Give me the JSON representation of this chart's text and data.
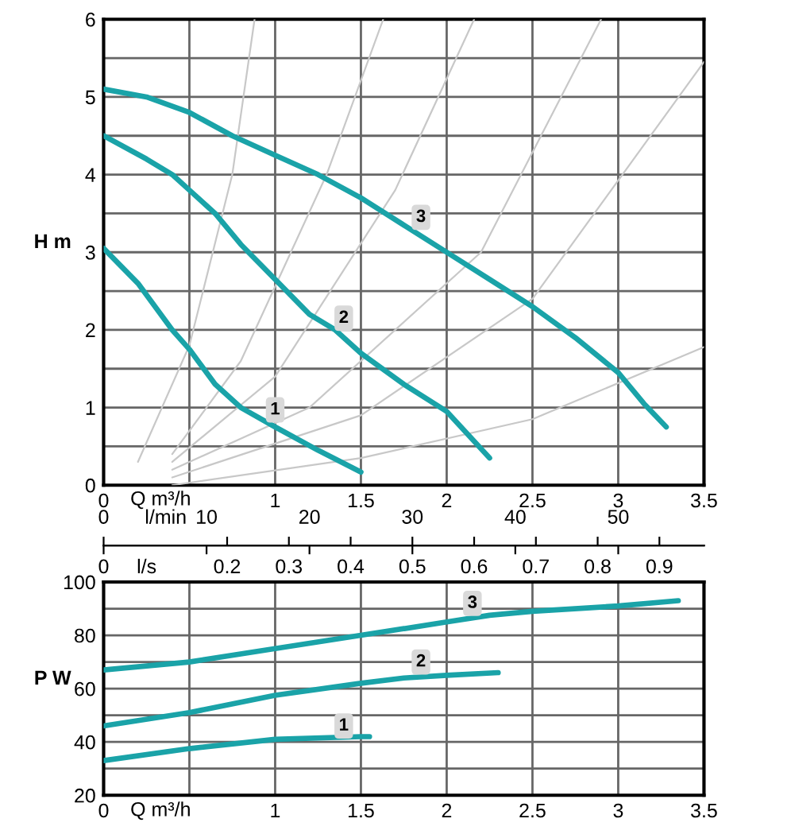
{
  "chart_data": [
    {
      "type": "line",
      "xlabel": "Q m³/h",
      "ylabel": "H m",
      "xlim": [
        0,
        3.5
      ],
      "xticks": [
        0,
        {
          "value": 0.5,
          "label": null
        },
        1,
        1.5,
        2,
        2.5,
        3,
        3.5
      ],
      "ylim": [
        0,
        6
      ],
      "yticks": [
        0,
        {
          "value": 0.5,
          "label": null
        },
        1,
        {
          "value": 1.5,
          "label": null
        },
        2,
        {
          "value": 2.5,
          "label": null
        },
        3,
        {
          "value": 3.5,
          "label": null
        },
        4,
        {
          "value": 4.5,
          "label": null
        },
        5,
        {
          "value": 5.5,
          "label": null
        },
        6
      ],
      "grid": true,
      "x2label": "l/min",
      "x2lim": [
        0,
        58.33
      ],
      "x2ticks": [
        0,
        10,
        20,
        30,
        40,
        50
      ],
      "series": [
        {
          "color": "#c8c8c8",
          "x": [
            0.2,
            0.5,
            0.75,
            0.88
          ],
          "values": [
            0.3,
            1.8,
            4.0,
            6
          ]
        },
        {
          "color": "#c8c8c8",
          "x": [
            0.4,
            0.8,
            1.3,
            1.63
          ],
          "values": [
            0.4,
            1.6,
            4.0,
            6
          ]
        },
        {
          "color": "#c8c8c8",
          "x": [
            0.4,
            1.0,
            1.7,
            2.16
          ],
          "values": [
            0.3,
            1.4,
            3.8,
            6
          ]
        },
        {
          "color": "#c8c8c8",
          "x": [
            0.4,
            1.2,
            2.2,
            2.9
          ],
          "values": [
            0.2,
            1.0,
            3.0,
            6
          ]
        },
        {
          "color": "#c8c8c8",
          "x": [
            0.4,
            1.5,
            2.5,
            3.5
          ],
          "values": [
            0.1,
            0.9,
            2.4,
            5.45
          ]
        },
        {
          "color": "#c8c8c8",
          "x": [
            0.4,
            1.5,
            2.5,
            3.5
          ],
          "values": [
            0.0,
            0.35,
            0.85,
            1.78
          ]
        },
        {
          "color": "#1aa3a8",
          "x": [
            0,
            0.25,
            0.5,
            0.75,
            1,
            1.25,
            1.5,
            1.75,
            2,
            2.25,
            2.5,
            2.75,
            3,
            3.15,
            3.28
          ],
          "values": [
            5.1,
            5.0,
            4.8,
            4.5,
            4.25,
            4.0,
            3.7,
            3.35,
            3.0,
            2.65,
            2.3,
            1.9,
            1.45,
            1.05,
            0.75
          ]
        },
        {
          "color": "#1aa3a8",
          "x": [
            0,
            0.25,
            0.4,
            0.5,
            0.65,
            0.8,
            1,
            1.2,
            1.35,
            1.5,
            1.75,
            2,
            2.25
          ],
          "values": [
            4.5,
            4.2,
            4.0,
            3.8,
            3.5,
            3.1,
            2.65,
            2.2,
            2.0,
            1.7,
            1.3,
            0.95,
            0.35
          ]
        },
        {
          "color": "#1aa3a8",
          "x": [
            0,
            0.2,
            0.4,
            0.5,
            0.65,
            0.8,
            1,
            1.25,
            1.5
          ],
          "values": [
            3.05,
            2.6,
            2.0,
            1.75,
            1.3,
            1.0,
            0.75,
            0.45,
            0.17
          ]
        }
      ],
      "annotations": [
        {
          "text": "1",
          "x": 1.0,
          "y": 0.97
        },
        {
          "text": "2",
          "x": 1.4,
          "y": 2.15
        },
        {
          "text": "3",
          "x": 1.85,
          "y": 3.45
        }
      ]
    },
    {
      "type": "line",
      "xlabel": "Q m³/h",
      "ylabel": "P W",
      "x2label": "l/s",
      "x2lim": [
        0,
        0.9722
      ],
      "x2ticks": [
        0,
        0.2,
        0.3,
        0.4,
        0.5,
        0.6,
        0.7,
        0.8,
        0.9
      ],
      "xlim": [
        0,
        3.5
      ],
      "xticks": [
        0,
        {
          "value": 0.5,
          "label": null
        },
        1,
        1.5,
        2,
        2.5,
        3,
        3.5
      ],
      "ylim": [
        20,
        100
      ],
      "yticks": [
        20,
        {
          "value": 30,
          "label": null
        },
        40,
        {
          "value": 50,
          "label": null
        },
        60,
        {
          "value": 70,
          "label": null
        },
        80,
        {
          "value": 90,
          "label": null
        },
        100
      ],
      "grid": true,
      "series": [
        {
          "color": "#1aa3a8",
          "x": [
            0,
            0.5,
            1,
            1.5,
            2,
            2.25,
            2.5,
            3,
            3.35
          ],
          "values": [
            67,
            70,
            75,
            80,
            85,
            87.5,
            89,
            91,
            93
          ]
        },
        {
          "color": "#1aa3a8",
          "x": [
            0,
            0.5,
            1,
            1.5,
            1.75,
            2,
            2.3
          ],
          "values": [
            46,
            51,
            57.5,
            62,
            64,
            65,
            66
          ]
        },
        {
          "color": "#1aa3a8",
          "x": [
            0,
            0.5,
            1,
            1.5,
            1.55
          ],
          "values": [
            33,
            37.5,
            41,
            42,
            42
          ]
        }
      ],
      "annotations": [
        {
          "text": "1",
          "x": 1.4,
          "y": 46
        },
        {
          "text": "2",
          "x": 1.85,
          "y": 70
        },
        {
          "text": "3",
          "x": 2.15,
          "y": 92
        }
      ]
    }
  ]
}
